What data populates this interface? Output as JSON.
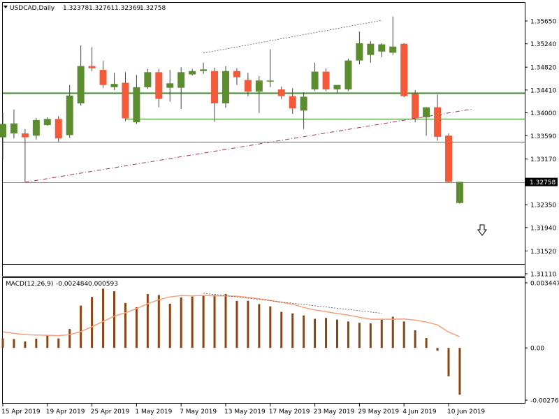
{
  "header": {
    "symbol": "USDCAD,Daily",
    "open": "1.32378",
    "high": "1.32761",
    "low": "1.32369",
    "close": "1.32758"
  },
  "macd_header": {
    "label": "MACD(12,26,9)",
    "main": "-0.002484",
    "signal": "0.000593"
  },
  "current_price_label": "1.32758",
  "colors": {
    "bull": "#5b8c2f",
    "bear": "#f25a3a",
    "macd_hist": "#8b4513",
    "macd_signal": "#f4a07a",
    "level_line": "#3a8a2a",
    "trend_line": "#a0305a",
    "grid_border": "#000000"
  },
  "icons": {
    "sell_arrow": "down-arrow-icon",
    "symbol_menu": "triangle-down-icon"
  },
  "chart_data": [
    {
      "type": "candlestick",
      "title": "USDCAD,Daily",
      "ylim": [
        1.3111,
        1.3585
      ],
      "y_ticks": [
        "1.35650",
        "1.35240",
        "1.34820",
        "1.34410",
        "1.34000",
        "1.33590",
        "1.33170",
        "1.32758",
        "1.32350",
        "1.31940",
        "1.31520",
        "1.31110"
      ],
      "candles": [
        {
          "o": 1.3356,
          "h": 1.34,
          "l": 1.3316,
          "c": 1.338
        },
        {
          "o": 1.3363,
          "h": 1.3406,
          "l": 1.3354,
          "c": 1.3381
        },
        {
          "o": 1.3363,
          "h": 1.3371,
          "l": 1.3276,
          "c": 1.3356
        },
        {
          "o": 1.3359,
          "h": 1.3391,
          "l": 1.3352,
          "c": 1.3387
        },
        {
          "o": 1.3378,
          "h": 1.3392,
          "l": 1.3377,
          "c": 1.3389
        },
        {
          "o": 1.3389,
          "h": 1.3394,
          "l": 1.3347,
          "c": 1.3354
        },
        {
          "o": 1.336,
          "h": 1.345,
          "l": 1.3355,
          "c": 1.3431
        },
        {
          "o": 1.3417,
          "h": 1.3521,
          "l": 1.3413,
          "c": 1.3484
        },
        {
          "o": 1.3484,
          "h": 1.3518,
          "l": 1.3475,
          "c": 1.348
        },
        {
          "o": 1.3477,
          "h": 1.3493,
          "l": 1.3445,
          "c": 1.345
        },
        {
          "o": 1.3446,
          "h": 1.3472,
          "l": 1.3441,
          "c": 1.3452
        },
        {
          "o": 1.3454,
          "h": 1.3473,
          "l": 1.3385,
          "c": 1.339
        },
        {
          "o": 1.3383,
          "h": 1.3468,
          "l": 1.338,
          "c": 1.3446
        },
        {
          "o": 1.3446,
          "h": 1.3479,
          "l": 1.3443,
          "c": 1.3473
        },
        {
          "o": 1.3473,
          "h": 1.3479,
          "l": 1.341,
          "c": 1.3425
        },
        {
          "o": 1.3445,
          "h": 1.3477,
          "l": 1.342,
          "c": 1.3453
        },
        {
          "o": 1.3445,
          "h": 1.3482,
          "l": 1.3407,
          "c": 1.3473
        },
        {
          "o": 1.3469,
          "h": 1.3479,
          "l": 1.3467,
          "c": 1.3475
        },
        {
          "o": 1.3475,
          "h": 1.349,
          "l": 1.347,
          "c": 1.3478
        },
        {
          "o": 1.3475,
          "h": 1.3481,
          "l": 1.3384,
          "c": 1.3417
        },
        {
          "o": 1.3417,
          "h": 1.3484,
          "l": 1.3409,
          "c": 1.3475
        },
        {
          "o": 1.3475,
          "h": 1.348,
          "l": 1.345,
          "c": 1.3464
        },
        {
          "o": 1.3459,
          "h": 1.3472,
          "l": 1.343,
          "c": 1.3438
        },
        {
          "o": 1.3438,
          "h": 1.3466,
          "l": 1.34,
          "c": 1.3458
        },
        {
          "o": 1.3458,
          "h": 1.3514,
          "l": 1.3446,
          "c": 1.3458
        },
        {
          "o": 1.3442,
          "h": 1.3447,
          "l": 1.3425,
          "c": 1.343
        },
        {
          "o": 1.343,
          "h": 1.3444,
          "l": 1.3398,
          "c": 1.3408
        },
        {
          "o": 1.3404,
          "h": 1.3437,
          "l": 1.3371,
          "c": 1.3429
        },
        {
          "o": 1.3442,
          "h": 1.349,
          "l": 1.3439,
          "c": 1.3474
        },
        {
          "o": 1.3474,
          "h": 1.348,
          "l": 1.3439,
          "c": 1.3442
        },
        {
          "o": 1.3442,
          "h": 1.3449,
          "l": 1.3435,
          "c": 1.345
        },
        {
          "o": 1.3442,
          "h": 1.3497,
          "l": 1.3439,
          "c": 1.3494
        },
        {
          "o": 1.3494,
          "h": 1.3546,
          "l": 1.3487,
          "c": 1.3525
        },
        {
          "o": 1.3504,
          "h": 1.3529,
          "l": 1.349,
          "c": 1.3524
        },
        {
          "o": 1.351,
          "h": 1.3525,
          "l": 1.35,
          "c": 1.3523
        },
        {
          "o": 1.3508,
          "h": 1.3573,
          "l": 1.3504,
          "c": 1.3519
        },
        {
          "o": 1.3524,
          "h": 1.3525,
          "l": 1.3428,
          "c": 1.343
        },
        {
          "o": 1.3434,
          "h": 1.3441,
          "l": 1.3383,
          "c": 1.339
        },
        {
          "o": 1.3392,
          "h": 1.341,
          "l": 1.3359,
          "c": 1.341
        },
        {
          "o": 1.341,
          "h": 1.3433,
          "l": 1.335,
          "c": 1.3357
        },
        {
          "o": 1.3359,
          "h": 1.3363,
          "l": 1.3275,
          "c": 1.3276
        },
        {
          "o": 1.3238,
          "h": 1.3276,
          "l": 1.3237,
          "c": 1.3276
        }
      ],
      "levels": [
        1.34354,
        1.33896,
        1.33484,
        1.32758,
        1.3128
      ]
    },
    {
      "type": "bar",
      "title": "MACD(12,26,9)",
      "ylim": [
        -0.002767,
        0.003447
      ],
      "y_ticks": [
        "0.003447",
        "0.00",
        "-0.002767"
      ],
      "histogram": [
        0.0005,
        0.00047,
        0.00034,
        0.00049,
        0.00069,
        0.0005,
        0.001,
        0.00224,
        0.0027,
        0.00314,
        0.003,
        0.00238,
        0.00215,
        0.00285,
        0.0028,
        0.00234,
        0.00267,
        0.00272,
        0.00276,
        0.00281,
        0.00286,
        0.00249,
        0.0025,
        0.00232,
        0.0022,
        0.00191,
        0.00183,
        0.00172,
        0.00154,
        0.00159,
        0.0015,
        0.0014,
        0.00133,
        0.0013,
        0.0015,
        0.00165,
        0.0014,
        0.00093,
        0.00052,
        -0.00015,
        -0.0015,
        -0.00248
      ],
      "signal": [
        0.00085,
        0.00077,
        0.0007,
        0.00068,
        0.00067,
        0.00065,
        0.0007,
        0.00086,
        0.00112,
        0.0014,
        0.00168,
        0.00186,
        0.00208,
        0.00234,
        0.00255,
        0.0027,
        0.00277,
        0.00276,
        0.00278,
        0.00275,
        0.00275,
        0.00274,
        0.00268,
        0.0026,
        0.00252,
        0.00241,
        0.00231,
        0.00214,
        0.00201,
        0.00192,
        0.00182,
        0.00174,
        0.00162,
        0.00152,
        0.00152,
        0.00152,
        0.00153,
        0.00147,
        0.00137,
        0.00122,
        0.00084,
        0.00059
      ]
    }
  ],
  "x_axis_labels": [
    "15 Apr 2019",
    "19 Apr 2019",
    "25 Apr 2019",
    "1 May 2019",
    "7 May 2019",
    "13 May 2019",
    "17 May 2019",
    "23 May 2019",
    "29 May 2019",
    "4 Jun 2019",
    "10 Jun 2019"
  ]
}
